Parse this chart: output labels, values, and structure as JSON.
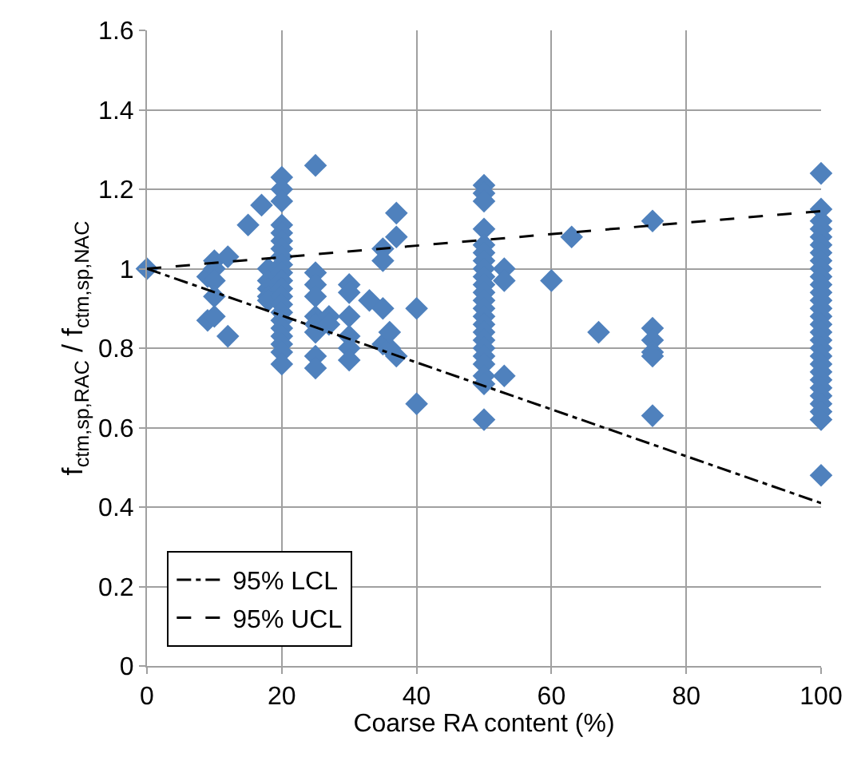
{
  "chart_data": {
    "type": "scatter",
    "xlabel": "Coarse RA content (%)",
    "ylabel": "f$_{ctm,sp,RAC}$ / f$_{ctm,sp,NAC}$",
    "xlim": [
      0,
      100
    ],
    "xticks": [
      0,
      20,
      40,
      60,
      80,
      100
    ],
    "ylim": [
      0,
      1.6
    ],
    "yticks": [
      0,
      0.2,
      0.4,
      0.6,
      0.8,
      1,
      1.2,
      1.4,
      1.6
    ],
    "grid": true,
    "legend": "bottom left",
    "marker": "diamond",
    "series": [
      {
        "color": "#4f81bd",
        "x": [
          0,
          9,
          9,
          10,
          10,
          10,
          10,
          10,
          12,
          12,
          15,
          17,
          18,
          18,
          18,
          18,
          18,
          20,
          20,
          20,
          20,
          20,
          20,
          20,
          20,
          20,
          20,
          20,
          20,
          20,
          20,
          20,
          20,
          20,
          20,
          20,
          20,
          20,
          25,
          25,
          25,
          25,
          25,
          25,
          25,
          25,
          25,
          27,
          27,
          30,
          30,
          30,
          30,
          30,
          30,
          33,
          35,
          35,
          35,
          35,
          36,
          36,
          37,
          37,
          37,
          40,
          40,
          50,
          50,
          50,
          50,
          50,
          50,
          50,
          50,
          50,
          50,
          50,
          50,
          50,
          50,
          50,
          50,
          50,
          50,
          50,
          50,
          50,
          50,
          50,
          53,
          53,
          53,
          60,
          63,
          67,
          75,
          75,
          75,
          75,
          75,
          75,
          100,
          100,
          100,
          100,
          100,
          100,
          100,
          100,
          100,
          100,
          100,
          100,
          100,
          100,
          100,
          100,
          100,
          100,
          100,
          100,
          100,
          100,
          100,
          100,
          100,
          100,
          100,
          100,
          100
        ],
        "values": [
          1.0,
          0.98,
          0.87,
          1.02,
          1.0,
          0.97,
          0.93,
          0.88,
          1.03,
          0.83,
          1.11,
          1.16,
          1.0,
          0.97,
          0.95,
          0.93,
          0.92,
          1.23,
          1.2,
          1.17,
          1.11,
          1.09,
          1.07,
          1.05,
          1.03,
          1.01,
          0.99,
          0.97,
          0.95,
          0.93,
          0.91,
          0.89,
          0.87,
          0.85,
          0.83,
          0.81,
          0.79,
          0.76,
          1.26,
          0.99,
          0.96,
          0.93,
          0.88,
          0.86,
          0.84,
          0.78,
          0.75,
          0.88,
          0.86,
          0.96,
          0.94,
          0.88,
          0.83,
          0.8,
          0.77,
          0.92,
          1.05,
          1.02,
          0.9,
          0.81,
          0.8,
          0.84,
          1.14,
          1.08,
          0.78,
          0.9,
          0.66,
          1.21,
          1.19,
          1.17,
          1.1,
          1.06,
          1.04,
          1.02,
          1.0,
          0.98,
          0.96,
          0.94,
          0.92,
          0.9,
          0.88,
          0.86,
          0.84,
          0.82,
          0.8,
          0.78,
          0.76,
          0.73,
          0.71,
          0.62,
          1.0,
          0.97,
          0.73,
          0.97,
          1.08,
          0.84,
          1.12,
          0.85,
          0.82,
          0.79,
          0.78,
          0.63,
          1.24,
          1.15,
          1.12,
          1.1,
          1.08,
          1.06,
          1.04,
          1.02,
          1.0,
          0.98,
          0.96,
          0.94,
          0.92,
          0.9,
          0.88,
          0.86,
          0.84,
          0.82,
          0.8,
          0.78,
          0.76,
          0.74,
          0.72,
          0.7,
          0.68,
          0.66,
          0.64,
          0.62,
          0.48
        ]
      },
      {
        "type": "line",
        "name": "95% LCL",
        "color": "#000000",
        "line_style": "dashdot",
        "marker": "none",
        "x": [
          0,
          100
        ],
        "values": [
          1.0,
          0.41
        ]
      },
      {
        "type": "line",
        "name": "95% UCL",
        "color": "#000000",
        "line_style": "dashed",
        "marker": "none",
        "x": [
          0,
          100
        ],
        "values": [
          1.0,
          1.145
        ]
      }
    ]
  }
}
